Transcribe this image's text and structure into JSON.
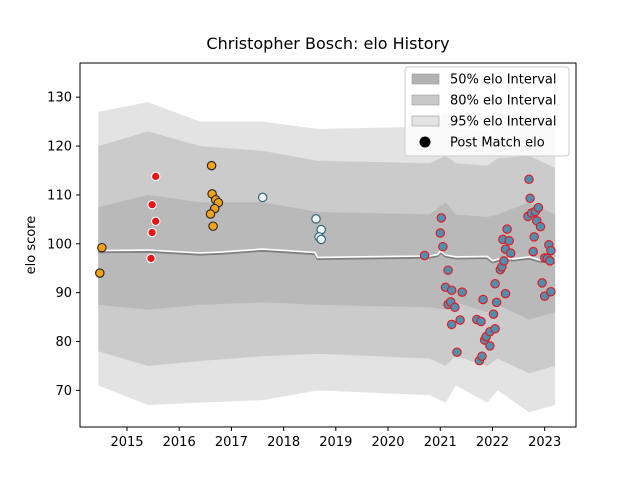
{
  "chart_data": {
    "type": "line",
    "title": "Christopher Bosch: elo History",
    "xlabel": "",
    "ylabel": "elo score",
    "xlim": [
      2014.1,
      2023.6
    ],
    "ylim": [
      62.5,
      137
    ],
    "xticks": [
      2015,
      2016,
      2017,
      2018,
      2019,
      2020,
      2021,
      2022,
      2023
    ],
    "yticks": [
      70,
      80,
      90,
      100,
      110,
      120,
      130
    ],
    "grid": false,
    "legend_placement": "top-right",
    "legend": [
      {
        "label": "50% elo Interval",
        "color": "#b3b3b3",
        "kind": "patch"
      },
      {
        "label": "80% elo Interval",
        "color": "#c8c8c8",
        "kind": "patch"
      },
      {
        "label": "95% elo Interval",
        "color": "#e3e3e3",
        "kind": "patch"
      },
      {
        "label": "Post Match elo",
        "color": "#000000",
        "kind": "marker"
      }
    ],
    "colors": {
      "band95": "#e3e3e3",
      "band80": "#cbcbcb",
      "band50": "#b9b9b9",
      "mean_line": "#808080",
      "mean_highlight": "#ffffff"
    },
    "bands": {
      "x": [
        2014.45,
        2015.4,
        2016.4,
        2017.6,
        2018.65,
        2020.8,
        2021.1,
        2021.3,
        2021.9,
        2022.1,
        2022.7,
        2023.2
      ],
      "p95_upper": [
        127,
        129,
        125,
        125,
        123.5,
        124,
        127,
        123.5,
        123,
        125,
        126,
        125
      ],
      "p95_lower": [
        71,
        67,
        67.5,
        68,
        70,
        69,
        67.5,
        71,
        67.5,
        70,
        65.5,
        67
      ],
      "p80_upper": [
        120,
        123,
        120,
        119,
        117,
        116.5,
        118,
        116.5,
        116,
        117.5,
        118,
        115.5
      ],
      "p80_lower": [
        78,
        75,
        76,
        77,
        77.5,
        76.5,
        75,
        77,
        75,
        76.5,
        73.5,
        75
      ],
      "p50_upper": [
        107.5,
        110,
        108.5,
        108.5,
        106.5,
        106,
        108.5,
        106,
        105.5,
        106,
        108.5,
        106
      ],
      "p50_lower": [
        87.5,
        86.5,
        87.5,
        88,
        87.5,
        87,
        86.5,
        88,
        86,
        87.5,
        84.5,
        86
      ]
    },
    "mean_line": {
      "x": [
        2014.45,
        2015.4,
        2016.4,
        2016.8,
        2017.6,
        2018.6,
        2018.65,
        2020.8,
        2020.95,
        2021.0,
        2021.1,
        2021.3,
        2021.9,
        2022.0,
        2022.2,
        2022.4,
        2022.7,
        2022.9,
        2023.2
      ],
      "y": [
        98.3,
        98.4,
        97.8,
        98.0,
        98.6,
        97.9,
        96.9,
        97.2,
        97.5,
        98.2,
        97.4,
        97.0,
        97.1,
        96.2,
        96.8,
        96.6,
        97.0,
        96.4,
        96.1
      ]
    },
    "series": [
      {
        "style": "orange-filled-dark-edge",
        "fill": "#f5a316",
        "edge": "#222222",
        "points": [
          [
            2014.52,
            99.2
          ],
          [
            2014.48,
            94.0
          ],
          [
            2016.62,
            116.0
          ],
          [
            2016.63,
            110.2
          ],
          [
            2016.7,
            109.0
          ],
          [
            2016.75,
            108.4
          ],
          [
            2016.68,
            107.2
          ],
          [
            2016.6,
            106.1
          ],
          [
            2016.65,
            103.6
          ]
        ]
      },
      {
        "style": "red-filled-white-edge",
        "fill": "#e8141a",
        "edge": "#ffffff",
        "points": [
          [
            2015.55,
            113.8
          ],
          [
            2015.48,
            108.0
          ],
          [
            2015.55,
            104.6
          ],
          [
            2015.48,
            102.3
          ],
          [
            2015.46,
            97.0
          ]
        ]
      },
      {
        "style": "white-filled-teal-edge",
        "fill": "#eef6fa",
        "edge": "#2b5f73",
        "points": [
          [
            2017.6,
            109.5
          ],
          [
            2018.62,
            105.1
          ],
          [
            2018.72,
            102.9
          ],
          [
            2018.68,
            101.4
          ],
          [
            2018.72,
            100.9
          ]
        ]
      },
      {
        "style": "steelblue-filled-red-edge",
        "fill": "#4f8fb0",
        "edge": "#e8141a",
        "points": [
          [
            2020.7,
            97.6
          ],
          [
            2021.02,
            105.3
          ],
          [
            2021.0,
            102.2
          ],
          [
            2021.05,
            99.4
          ],
          [
            2021.15,
            94.6
          ],
          [
            2021.1,
            91.1
          ],
          [
            2021.22,
            90.5
          ],
          [
            2021.15,
            87.6
          ],
          [
            2021.2,
            88.1
          ],
          [
            2021.28,
            87.0
          ],
          [
            2021.22,
            83.5
          ],
          [
            2021.32,
            77.8
          ],
          [
            2021.38,
            84.4
          ],
          [
            2021.42,
            90.1
          ],
          [
            2021.7,
            84.5
          ],
          [
            2021.78,
            84.1
          ],
          [
            2021.82,
            88.6
          ],
          [
            2021.75,
            76.1
          ],
          [
            2021.8,
            77.0
          ],
          [
            2021.85,
            80.3
          ],
          [
            2021.88,
            81.0
          ],
          [
            2021.95,
            82.0
          ],
          [
            2021.95,
            79.1
          ],
          [
            2022.02,
            85.6
          ],
          [
            2022.05,
            91.8
          ],
          [
            2022.08,
            88.0
          ],
          [
            2022.05,
            82.6
          ],
          [
            2022.15,
            94.7
          ],
          [
            2022.18,
            95.3
          ],
          [
            2022.22,
            96.5
          ],
          [
            2022.2,
            100.9
          ],
          [
            2022.28,
            103.0
          ],
          [
            2022.25,
            98.9
          ],
          [
            2022.32,
            100.6
          ],
          [
            2022.35,
            98.1
          ],
          [
            2022.25,
            89.8
          ],
          [
            2022.7,
            113.2
          ],
          [
            2022.72,
            109.3
          ],
          [
            2022.68,
            105.6
          ],
          [
            2022.75,
            106.3
          ],
          [
            2022.82,
            106.6
          ],
          [
            2022.88,
            107.4
          ],
          [
            2022.85,
            104.7
          ],
          [
            2022.92,
            103.5
          ],
          [
            2022.8,
            101.4
          ],
          [
            2022.78,
            98.4
          ],
          [
            2023.0,
            97.1
          ],
          [
            2022.95,
            92.0
          ],
          [
            2023.0,
            89.3
          ],
          [
            2023.08,
            99.8
          ],
          [
            2023.12,
            98.6
          ],
          [
            2023.05,
            97.0
          ],
          [
            2023.1,
            96.5
          ],
          [
            2023.12,
            90.2
          ]
        ]
      }
    ]
  }
}
